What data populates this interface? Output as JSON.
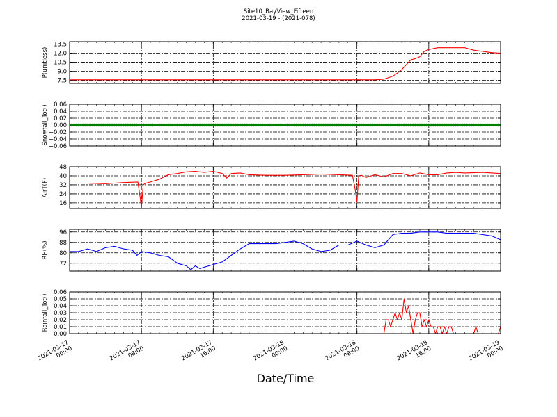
{
  "header": {
    "title": "Site10_BayView_Fifteen",
    "subtitle": "2021-03-19 - (2021-078)"
  },
  "xlabel": "Date/Time",
  "x_ticks": [
    {
      "label_date": "2021-03-17",
      "label_time": "00:00",
      "hour": 0
    },
    {
      "label_date": "2021-03-17",
      "label_time": "08:00",
      "hour": 8
    },
    {
      "label_date": "2021-03-17",
      "label_time": "16:00",
      "hour": 16
    },
    {
      "label_date": "2021-03-18",
      "label_time": "00:00",
      "hour": 24
    },
    {
      "label_date": "2021-03-18",
      "label_time": "08:00",
      "hour": 32
    },
    {
      "label_date": "2021-03-18",
      "label_time": "16:00",
      "hour": 40
    },
    {
      "label_date": "2021-03-19",
      "label_time": "00:00",
      "hour": 48
    }
  ],
  "chart_data": [
    {
      "type": "line",
      "ylabel": "P(unitless)",
      "ylim": [
        7.0,
        13.9
      ],
      "yticks": [
        "7.5",
        "9.0",
        "10.5",
        "12.0",
        "13.5"
      ],
      "color": "#ff0000",
      "grid": true,
      "x_hours": [
        0,
        34,
        35,
        36,
        36.5,
        37,
        37.5,
        38,
        38.5,
        39,
        39.5,
        40,
        41,
        42,
        43,
        44,
        45,
        46,
        47,
        48
      ],
      "values": [
        7.6,
        7.6,
        7.7,
        8.2,
        8.7,
        9.3,
        10.1,
        10.9,
        11.1,
        11.4,
        12.3,
        12.6,
        12.9,
        12.9,
        12.9,
        12.9,
        12.5,
        12.3,
        12.1,
        12.0
      ]
    },
    {
      "type": "scatter",
      "ylabel": "Snowfall_Tot()",
      "ylim": [
        -0.06,
        0.06
      ],
      "yticks": [
        "−0.06",
        "−0.04",
        "−0.02",
        "0.00",
        "0.02",
        "0.04",
        "0.06"
      ],
      "color": "#008000",
      "grid": true,
      "x_start": 0,
      "x_end": 48,
      "x_step": 0.25,
      "constant_value": 0.0
    },
    {
      "type": "line",
      "ylabel": "AirT(F)",
      "ylim": [
        11,
        48
      ],
      "yticks": [
        "16",
        "24",
        "32",
        "40",
        "48"
      ],
      "color": "#ff0000",
      "grid": true,
      "x_hours": [
        0,
        2,
        4,
        5,
        6,
        7.6,
        7.8,
        8.0,
        8.2,
        8.5,
        9,
        10,
        11,
        12,
        13,
        14,
        15,
        16,
        17,
        17.5,
        18,
        19,
        20,
        22,
        24,
        26,
        28,
        30,
        31.5,
        31.8,
        32.0,
        32.2,
        32.5,
        33,
        34,
        35,
        36,
        37,
        38,
        39,
        40,
        41,
        42,
        43,
        44,
        46,
        48
      ],
      "values": [
        33.5,
        33.5,
        33.0,
        33.5,
        34,
        34.5,
        24,
        12,
        32,
        33.5,
        34.5,
        37,
        41,
        42,
        43.5,
        44,
        43,
        44,
        42,
        38,
        42,
        42.5,
        41,
        40.5,
        40.5,
        41,
        41.5,
        41,
        40.5,
        28,
        17,
        40,
        40.5,
        38.5,
        41,
        39,
        42,
        42,
        40,
        42.5,
        41,
        41,
        42.5,
        43,
        42.5,
        43,
        42
      ]
    },
    {
      "type": "line",
      "ylabel": "RH(%)",
      "ylim": [
        66,
        98
      ],
      "yticks": [
        "72",
        "80",
        "88",
        "96"
      ],
      "color": "#0000ff",
      "grid": true,
      "x_hours": [
        0,
        1,
        2,
        3,
        4,
        5,
        6,
        7,
        7.5,
        8,
        9,
        10,
        11,
        12,
        13,
        13.5,
        14,
        14.5,
        15,
        15.5,
        16,
        17,
        18,
        19,
        20,
        21,
        22,
        23,
        24,
        25,
        26,
        27,
        28,
        29,
        30,
        31,
        32,
        33,
        34,
        35,
        36,
        37,
        38,
        39,
        40,
        41,
        42,
        43,
        44,
        45,
        46,
        47,
        48
      ],
      "values": [
        81,
        81,
        83,
        81,
        84,
        85,
        83,
        82,
        78,
        81,
        80,
        78,
        77,
        72,
        70,
        67,
        70,
        68,
        69,
        70,
        71,
        73,
        78,
        83,
        87,
        87,
        87,
        87,
        88,
        89,
        87,
        83,
        81,
        82,
        86,
        86,
        89,
        86,
        84,
        86,
        94,
        95,
        95,
        96,
        96,
        96,
        95,
        95,
        95,
        95,
        94,
        93,
        90
      ]
    },
    {
      "type": "line",
      "ylabel": "Rainfall_Tot()",
      "ylim": [
        0.0,
        0.06
      ],
      "yticks": [
        "0.00",
        "0.01",
        "0.02",
        "0.03",
        "0.04",
        "0.05",
        "0.06"
      ],
      "color": "#ff0000",
      "grid": true,
      "x_hours": [
        0,
        35,
        35.25,
        35.5,
        35.75,
        36,
        36.25,
        36.5,
        36.75,
        37,
        37.25,
        37.5,
        37.75,
        38,
        38.25,
        38.5,
        38.75,
        39,
        39.25,
        39.5,
        39.75,
        40,
        40.25,
        40.5,
        40.75,
        41,
        41.25,
        41.5,
        41.75,
        42,
        42.25,
        42.5,
        42.75,
        43,
        43.25,
        43.5,
        43.75,
        44,
        45,
        45.25,
        45.5,
        47.75,
        48
      ],
      "values": [
        0,
        0,
        0.02,
        0.02,
        0.01,
        0.02,
        0.03,
        0.02,
        0.03,
        0.02,
        0.05,
        0.03,
        0.04,
        0.02,
        0.0,
        0.02,
        0.03,
        0.03,
        0.01,
        0.02,
        0.01,
        0.02,
        0.01,
        0.01,
        0.0,
        0.01,
        0.01,
        0.0,
        0.01,
        0.0,
        0.01,
        0.01,
        0.0,
        0.0,
        0.0,
        0.0,
        0.0,
        0.0,
        0.0,
        0.01,
        0.0,
        0.0,
        0.01
      ]
    }
  ]
}
